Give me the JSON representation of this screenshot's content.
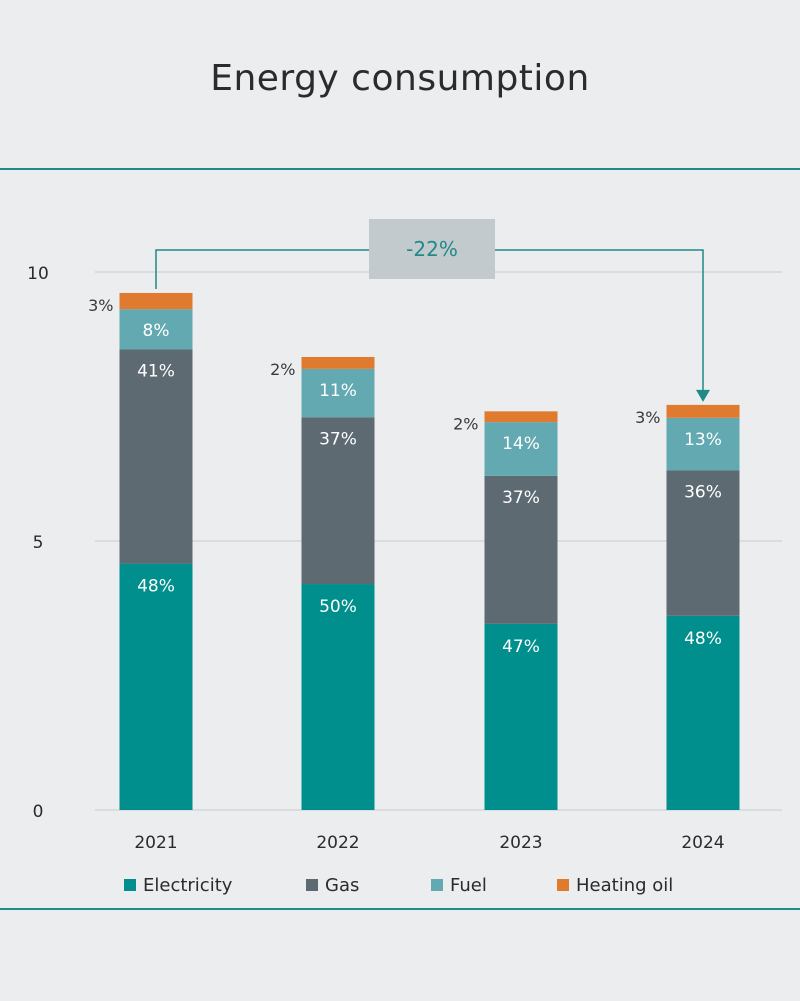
{
  "title": "Energy consumption",
  "colors": {
    "electricity": "#008f8c",
    "gas": "#5d6a72",
    "fuel": "#63a9b2",
    "heating_oil": "#e07a2f",
    "rule": "#1f8a87",
    "grid": "#c9cdd1",
    "callout_bg": "#c2cace",
    "callout_text": "#1f8a87"
  },
  "legend": [
    {
      "label": "Electricity",
      "color": "#008f8c"
    },
    {
      "label": "Gas",
      "color": "#5d6a72"
    },
    {
      "label": "Fuel",
      "color": "#63a9b2"
    },
    {
      "label": "Heating oil",
      "color": "#e07a2f"
    }
  ],
  "annotation": {
    "text": "-22%",
    "from": "2021",
    "to": "2024"
  },
  "chart_data": {
    "type": "bar",
    "stacked": true,
    "categories": [
      "2021",
      "2022",
      "2023",
      "2024"
    ],
    "ylim": [
      0,
      10
    ],
    "yticks": [
      "0",
      "5",
      "10"
    ],
    "grid": true,
    "legend_position": "bottom",
    "series": [
      {
        "name": "Electricity",
        "values": [
          4.58,
          4.2,
          3.46,
          3.61
        ],
        "labels": [
          "48%",
          "50%",
          "47%",
          "48%"
        ]
      },
      {
        "name": "Gas",
        "values": [
          3.98,
          3.1,
          2.75,
          2.7
        ],
        "labels": [
          "41%",
          "37%",
          "37%",
          "36%"
        ]
      },
      {
        "name": "Fuel",
        "values": [
          0.75,
          0.9,
          1.0,
          0.98
        ],
        "labels": [
          "8%",
          "11%",
          "14%",
          "13%"
        ]
      },
      {
        "name": "Heating oil",
        "values": [
          0.3,
          0.22,
          0.2,
          0.24
        ],
        "labels": [
          "3%",
          "2%",
          "2%",
          "3%"
        ]
      }
    ]
  }
}
